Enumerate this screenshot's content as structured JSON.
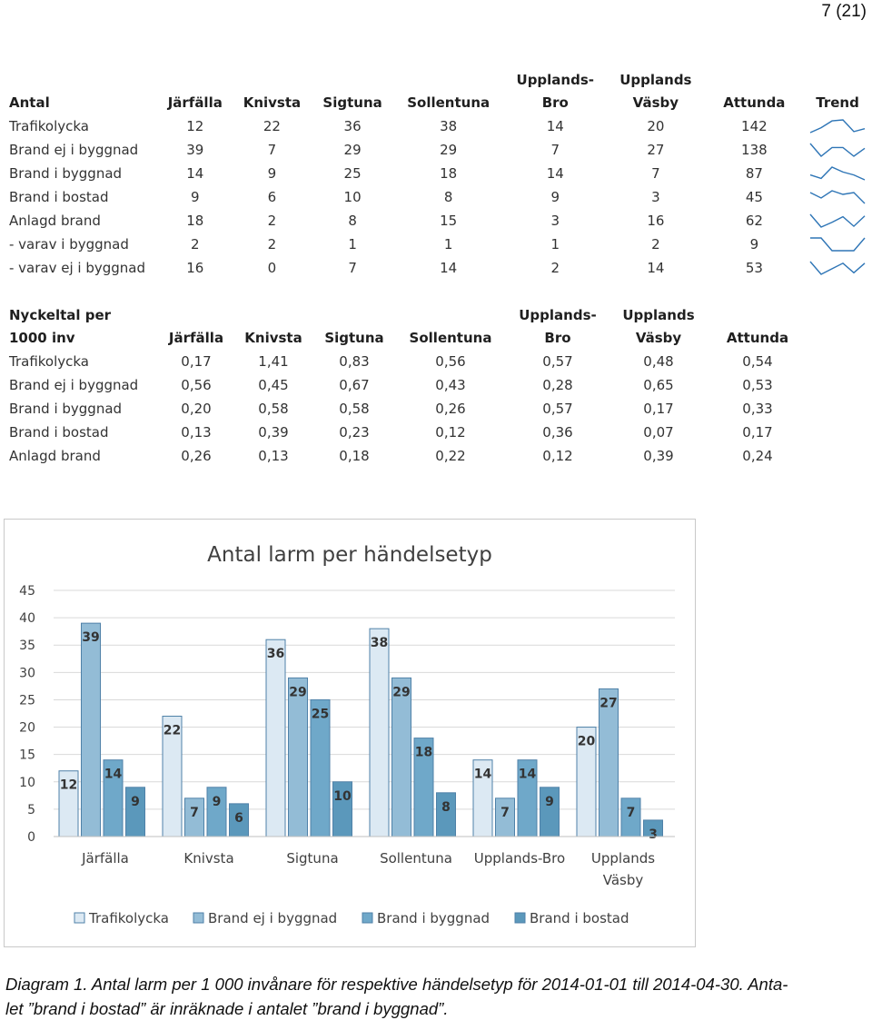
{
  "page_number": "7 (21)",
  "antal_table": {
    "header": [
      "Antal",
      "Järfälla",
      "Knivsta",
      "Sigtuna",
      "Sollentuna",
      "Upplands-Bro",
      "Upplands Väsby",
      "Attunda",
      "Trend"
    ],
    "header_lines": [
      [
        "Antal"
      ],
      [
        "Järfälla"
      ],
      [
        "Knivsta"
      ],
      [
        "Sigtuna"
      ],
      [
        "Sollentuna"
      ],
      [
        "Upplands-",
        "Bro"
      ],
      [
        "Upplands",
        "Väsby"
      ],
      [
        "Attunda"
      ],
      [
        "Trend"
      ]
    ],
    "rows": [
      {
        "label": "Trafikolycka",
        "values": [
          "12",
          "22",
          "36",
          "38",
          "14",
          "20",
          "142"
        ]
      },
      {
        "label": "Brand ej i byggnad",
        "values": [
          "39",
          "7",
          "29",
          "29",
          "7",
          "27",
          "138"
        ]
      },
      {
        "label": "Brand i byggnad",
        "values": [
          "14",
          "9",
          "25",
          "18",
          "14",
          "7",
          "87"
        ]
      },
      {
        "label": "Brand i bostad",
        "values": [
          "9",
          "6",
          "10",
          "8",
          "9",
          "3",
          "45"
        ]
      },
      {
        "label": "Anlagd brand",
        "values": [
          "18",
          "2",
          "8",
          "15",
          "3",
          "16",
          "62"
        ]
      },
      {
        "label": "- varav i byggnad",
        "values": [
          "2",
          "2",
          "1",
          "1",
          "1",
          "2",
          "9"
        ]
      },
      {
        "label": "- varav ej i byggnad",
        "values": [
          "16",
          "0",
          "7",
          "14",
          "2",
          "14",
          "53"
        ]
      }
    ],
    "trend_color": "#2e75b6"
  },
  "ratio_table": {
    "header_lines": [
      [
        "Nyckeltal per",
        "1000 inv"
      ],
      [
        "Järfälla"
      ],
      [
        "Knivsta"
      ],
      [
        "Sigtuna"
      ],
      [
        "Sollentuna"
      ],
      [
        "Upplands-",
        "Bro"
      ],
      [
        "Upplands",
        "Väsby"
      ],
      [
        "Attunda"
      ]
    ],
    "rows": [
      {
        "label": "Trafikolycka",
        "values": [
          "0,17",
          "1,41",
          "0,83",
          "0,56",
          "0,57",
          "0,48",
          "0,54"
        ]
      },
      {
        "label": "Brand ej i byggnad",
        "values": [
          "0,56",
          "0,45",
          "0,67",
          "0,43",
          "0,28",
          "0,65",
          "0,53"
        ]
      },
      {
        "label": "Brand i byggnad",
        "values": [
          "0,20",
          "0,58",
          "0,58",
          "0,26",
          "0,57",
          "0,17",
          "0,33"
        ]
      },
      {
        "label": "Brand i bostad",
        "values": [
          "0,13",
          "0,39",
          "0,23",
          "0,12",
          "0,36",
          "0,07",
          "0,17"
        ]
      },
      {
        "label": "Anlagd brand",
        "values": [
          "0,26",
          "0,13",
          "0,18",
          "0,22",
          "0,12",
          "0,39",
          "0,24"
        ]
      }
    ]
  },
  "chart_data": {
    "type": "bar",
    "title": "Antal larm per händelsetyp",
    "categories": [
      "Järfälla",
      "Knivsta",
      "Sigtuna",
      "Sollentuna",
      "Upplands-Bro",
      "Upplands Väsby"
    ],
    "category_lines": [
      [
        "Järfälla"
      ],
      [
        "Knivsta"
      ],
      [
        "Sigtuna"
      ],
      [
        "Sollentuna"
      ],
      [
        "Upplands-Bro"
      ],
      [
        "Upplands",
        "Väsby"
      ]
    ],
    "series": [
      {
        "name": "Trafikolycka",
        "values": [
          12,
          22,
          36,
          38,
          14,
          20
        ],
        "color": "#dce9f3"
      },
      {
        "name": "Brand ej i byggnad",
        "values": [
          39,
          7,
          29,
          29,
          7,
          27
        ],
        "color": "#93bcd6"
      },
      {
        "name": "Brand i byggnad",
        "values": [
          14,
          9,
          25,
          18,
          14,
          7
        ],
        "color": "#6fa8c9"
      },
      {
        "name": "Brand i bostad",
        "values": [
          9,
          6,
          10,
          8,
          9,
          3
        ],
        "color": "#5b98bb"
      }
    ],
    "ylim": [
      0,
      45
    ],
    "yticks": [
      0,
      5,
      10,
      15,
      20,
      25,
      30,
      35,
      40,
      45
    ],
    "xlabel": "",
    "ylabel": "",
    "grid": true,
    "legend": "bottom",
    "data_labels": true
  },
  "caption": {
    "line1": "Diagram 1. Antal larm per 1 000 invånare för respektive händelsetyp för 2014-01-01 till 2014-04-30. Anta-",
    "line2": "let ”brand i bostad” är inräknade i antalet ”brand i byggnad”."
  }
}
